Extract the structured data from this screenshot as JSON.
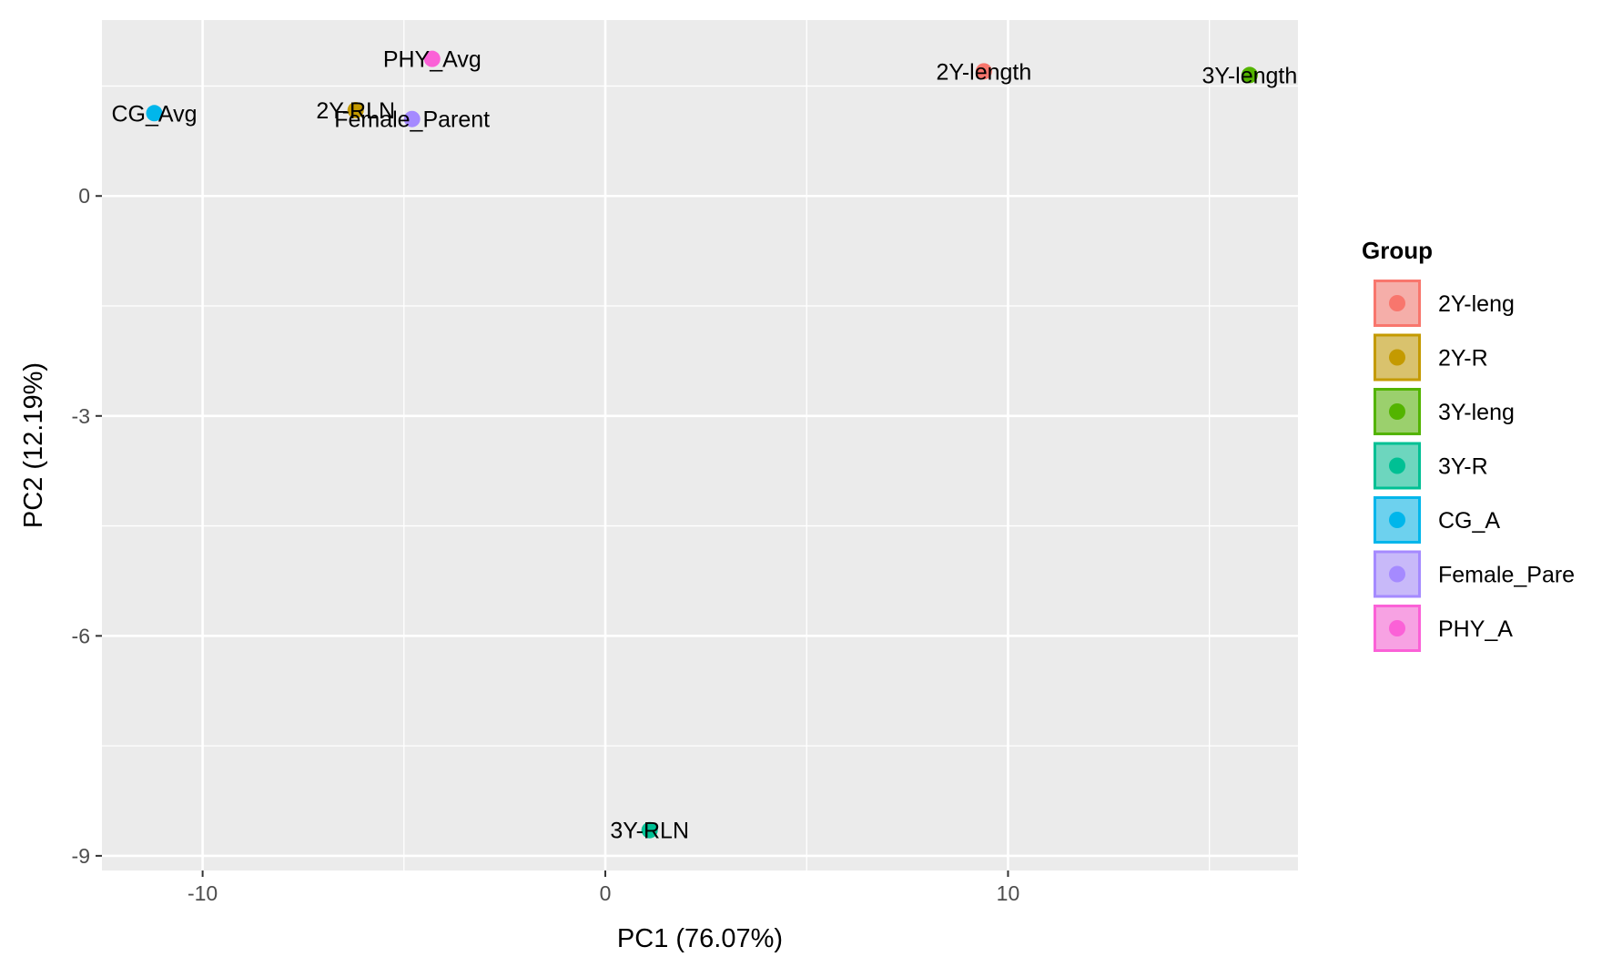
{
  "chart_data": {
    "type": "scatter",
    "title": "",
    "xlabel": "PC1 (76.07%)",
    "ylabel": "PC2 (12.19%)",
    "xlim": [
      -12.5,
      17.2
    ],
    "ylim": [
      -9.2,
      2.4
    ],
    "x_ticks": [
      -10,
      0,
      10
    ],
    "x_tick_labels": [
      "-10",
      "0",
      "10"
    ],
    "y_ticks": [
      0,
      -3,
      -6,
      -9
    ],
    "y_tick_labels": [
      "0",
      "-3",
      "-6",
      "-9"
    ],
    "grid": true,
    "legend_position": "right",
    "legend_title": "Group",
    "points": [
      {
        "label": "2Y-length",
        "group": "2Y-leng",
        "x": 9.4,
        "y": 1.7
      },
      {
        "label": "3Y-length",
        "group": "3Y-leng",
        "x": 16.0,
        "y": 1.65
      },
      {
        "label": "2Y-RLN",
        "group": "2Y-R",
        "x": -6.2,
        "y": 1.17
      },
      {
        "label": "3Y-RLN",
        "group": "3Y-R",
        "x": 1.1,
        "y": -8.65
      },
      {
        "label": "CG_Avg",
        "group": "CG_A",
        "x": -11.2,
        "y": 1.13
      },
      {
        "label": "Female_Parent",
        "group": "Female_Pare",
        "x": -4.8,
        "y": 1.05
      },
      {
        "label": "PHY_Avg",
        "group": "PHY_A",
        "x": -4.3,
        "y": 1.87
      }
    ],
    "legend": [
      {
        "name": "2Y-leng",
        "color": "#F8766D"
      },
      {
        "name": "2Y-R",
        "color": "#C49A00"
      },
      {
        "name": "3Y-leng",
        "color": "#53B400"
      },
      {
        "name": "3Y-R",
        "color": "#00C094"
      },
      {
        "name": "CG_A",
        "color": "#00B6EB"
      },
      {
        "name": "Female_Pare",
        "color": "#A58AFF"
      },
      {
        "name": "PHY_A",
        "color": "#FB61D7"
      }
    ]
  }
}
